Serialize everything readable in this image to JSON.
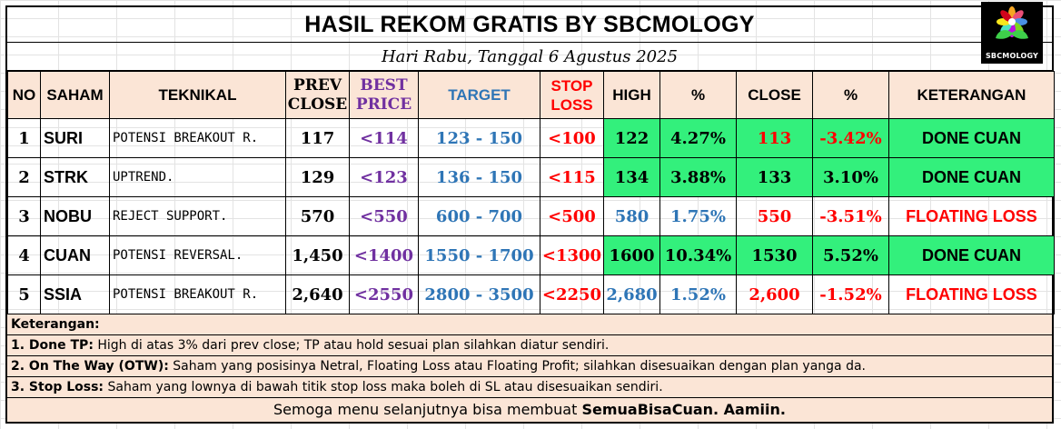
{
  "title": "HASIL REKOM GRATIS BY SBCMOLOGY",
  "subtitle": "Hari Rabu, Tanggal 6 Agustus 2025",
  "logo_text": "SBCMOLOGY",
  "headers": {
    "no": "NO",
    "saham": "SAHAM",
    "teknikal": "TEKNIKAL",
    "prev_close_1": "PREV",
    "prev_close_2": "CLOSE",
    "best_price_1": "BEST",
    "best_price_2": "PRICE",
    "target": "TARGET",
    "stop_loss_1": "STOP",
    "stop_loss_2": "LOSS",
    "high": "HIGH",
    "pct_high": "%",
    "close": "CLOSE",
    "pct_close": "%",
    "keterangan": "KETERANGAN"
  },
  "rows": [
    {
      "no": "1",
      "saham": "SURI",
      "teknikal": "POTENSI BREAKOUT R.",
      "prev_close": "117",
      "best_price": "<114",
      "target": "123 - 150",
      "stop_loss": "<100",
      "high": "122",
      "pct_high": "4.27%",
      "close": "113",
      "pct_close": "-3.42%",
      "keterangan": "DONE CUAN"
    },
    {
      "no": "2",
      "saham": "STRK",
      "teknikal": "UPTREND.",
      "prev_close": "129",
      "best_price": "<123",
      "target": "136 - 150",
      "stop_loss": "<115",
      "high": "134",
      "pct_high": "3.88%",
      "close": "133",
      "pct_close": "3.10%",
      "keterangan": "DONE CUAN"
    },
    {
      "no": "3",
      "saham": "NOBU",
      "teknikal": "REJECT SUPPORT.",
      "prev_close": "570",
      "best_price": "<550",
      "target": "600 - 700",
      "stop_loss": "<500",
      "high": "580",
      "pct_high": "1.75%",
      "close": "550",
      "pct_close": "-3.51%",
      "keterangan": "FLOATING LOSS"
    },
    {
      "no": "4",
      "saham": "CUAN",
      "teknikal": "POTENSI REVERSAL.",
      "prev_close": "1,450",
      "best_price": "<1400",
      "target": "1550 - 1700",
      "stop_loss": "<1300",
      "high": "1600",
      "pct_high": "10.34%",
      "close": "1530",
      "pct_close": "5.52%",
      "keterangan": "DONE CUAN"
    },
    {
      "no": "5",
      "saham": "SSIA",
      "teknikal": "POTENSI BREAKOUT R.",
      "prev_close": "2,640",
      "best_price": "<2550",
      "target": "2800 - 3500",
      "stop_loss": "<2250",
      "high": "2,680",
      "pct_high": "1.52%",
      "close": "2,600",
      "pct_close": "-1.52%",
      "keterangan": "FLOATING LOSS"
    }
  ],
  "notes": {
    "heading": "Keterangan:",
    "items": [
      {
        "label": "1. Done TP:",
        "text": " High di atas 3% dari prev close; TP atau hold sesuai plan silahkan diatur sendiri."
      },
      {
        "label": "2. On The Way (OTW):",
        "text": " Saham yang posisinya Netral, Floating Loss atau Floating Profit; silahkan disesuaikan dengan plan yanga da."
      },
      {
        "label": "3. Stop Loss:",
        "text": " Saham yang lownya di bawah titik stop loss maka boleh di SL atau disesuaikan sendiri."
      }
    ]
  },
  "footer": {
    "text": "Semoga menu selanjutnya bisa membuat ",
    "bold": "SemuaBisaCuan. Aamiin."
  },
  "colors": {
    "header_bg": "#fbe5d6",
    "done_green": "#33f07c",
    "best_price": "#7030a0",
    "target": "#2e75b6",
    "loss_red": "#ff0000"
  }
}
